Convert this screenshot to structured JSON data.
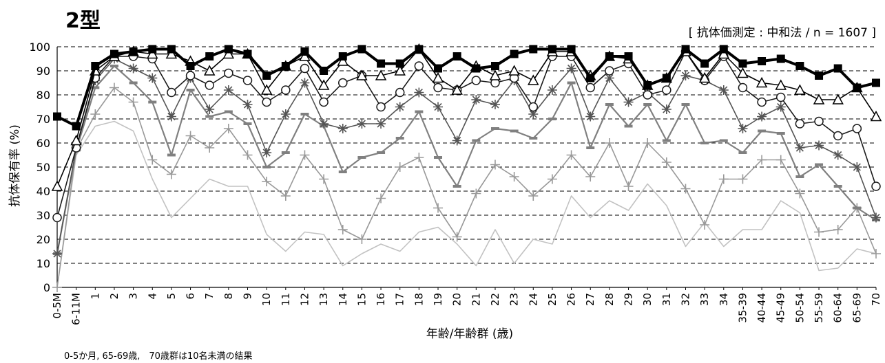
{
  "chart_data": {
    "type": "line",
    "title": "2型",
    "subtitle": "[ 抗体価測定 : 中和法  /  n = 1607 ]",
    "xlabel": "年齢/年齢群 (歳)",
    "ylabel": "抗体保有率 (%)",
    "footnote": "0-5か月, 65-69歳,　70歳群は10名未満の結果",
    "ylim": [
      0,
      100
    ],
    "yticks": [
      "0",
      "10",
      "20",
      "30",
      "40",
      "50",
      "60",
      "70",
      "80",
      "90",
      "100"
    ],
    "grid": "horizontal dashed",
    "categories": [
      "0-5M",
      "6-11M",
      "1",
      "2",
      "3",
      "4",
      "5",
      "6",
      "7",
      "8",
      "9",
      "10",
      "11",
      "12",
      "13",
      "14",
      "15",
      "16",
      "17",
      "18",
      "19",
      "20",
      "21",
      "22",
      "23",
      "24",
      "25",
      "26",
      "27",
      "28",
      "29",
      "30",
      "31",
      "32",
      "33",
      "34",
      "35-39",
      "40-44",
      "45-49",
      "50-54",
      "55-59",
      "60-64",
      "65-69",
      "70"
    ],
    "series": [
      {
        "values": [
          71,
          67,
          92,
          97,
          98,
          99,
          99,
          92,
          96,
          99,
          97,
          88,
          92,
          98,
          90,
          96,
          99,
          93,
          93,
          99,
          91,
          96,
          91,
          92,
          97,
          99,
          99,
          99,
          87,
          96,
          96,
          84,
          87,
          99,
          93,
          99,
          93,
          94,
          95,
          92,
          88,
          91,
          83,
          85
        ],
        "color": "#000000",
        "marker": "square",
        "width": 4
      },
      {
        "values": [
          42,
          61,
          90,
          96,
          98,
          97,
          97,
          94,
          90,
          97,
          97,
          82,
          92,
          96,
          84,
          94,
          88,
          88,
          90,
          99,
          87,
          82,
          92,
          88,
          90,
          86,
          98,
          98,
          88,
          96,
          95,
          84,
          87,
          98,
          87,
          97,
          89,
          85,
          84,
          82,
          78,
          78,
          83,
          71
        ],
        "color": "#000000",
        "marker": "triangle",
        "width": 1.6
      },
      {
        "values": [
          29,
          58,
          87,
          96,
          96,
          95,
          81,
          88,
          84,
          89,
          86,
          77,
          82,
          91,
          77,
          85,
          88,
          75,
          81,
          92,
          83,
          82,
          86,
          85,
          87,
          75,
          96,
          96,
          83,
          90,
          93,
          80,
          82,
          98,
          86,
          96,
          83,
          77,
          79,
          68,
          69,
          63,
          66,
          42
        ],
        "color": "#1a1a1a",
        "marker": "circle",
        "width": 1.6
      },
      {
        "values": [
          14,
          58,
          86,
          95,
          91,
          87,
          71,
          87,
          74,
          82,
          76,
          56,
          72,
          85,
          68,
          66,
          68,
          68,
          75,
          81,
          75,
          61,
          78,
          76,
          86,
          72,
          82,
          91,
          71,
          87,
          77,
          81,
          74,
          88,
          86,
          82,
          66,
          71,
          75,
          58,
          59,
          55,
          50,
          29
        ],
        "color": "#555555",
        "marker": "star",
        "width": 1.6
      },
      {
        "values": [
          14,
          57,
          83,
          92,
          85,
          77,
          55,
          82,
          71,
          73,
          68,
          50,
          56,
          72,
          67,
          48,
          54,
          56,
          62,
          73,
          54,
          42,
          61,
          66,
          65,
          62,
          70,
          85,
          58,
          76,
          67,
          76,
          61,
          76,
          60,
          61,
          56,
          65,
          64,
          46,
          51,
          42,
          33,
          28
        ],
        "color": "#808080",
        "marker": "dash",
        "width": 2.2
      },
      {
        "values": [
          0,
          57,
          72,
          83,
          77,
          53,
          47,
          63,
          58,
          66,
          55,
          44,
          38,
          55,
          45,
          24,
          20,
          37,
          50,
          54,
          33,
          21,
          39,
          51,
          46,
          38,
          45,
          55,
          46,
          60,
          42,
          60,
          52,
          41,
          26,
          45,
          45,
          53,
          53,
          39,
          23,
          24,
          33,
          14
        ],
        "color": "#999999",
        "marker": "plus",
        "width": 1.6
      },
      {
        "values": [
          0,
          55,
          67,
          69,
          65,
          45,
          29,
          37,
          45,
          42,
          42,
          22,
          15,
          23,
          22,
          9,
          14,
          18,
          15,
          23,
          25,
          18,
          9,
          24,
          10,
          20,
          18,
          38,
          29,
          36,
          32,
          43,
          34,
          17,
          27,
          17,
          24,
          24,
          36,
          31,
          7,
          8,
          16,
          14
        ],
        "color": "#c2c2c2",
        "marker": "none",
        "width": 1.6
      }
    ]
  }
}
